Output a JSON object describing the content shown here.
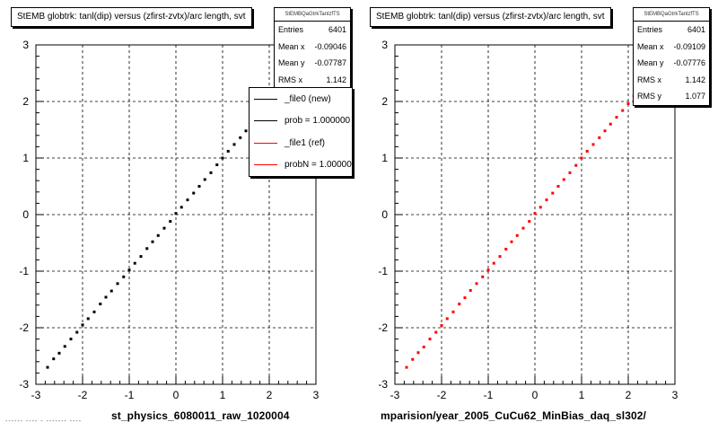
{
  "colors": {
    "new": "#000000",
    "ref": "#ff0000",
    "grid": "#000000"
  },
  "panels": [
    {
      "title": "StEMB globtrk: tanl(dip) versus (zfirst-zvtx)/arc length, svt",
      "stats": {
        "name": "StEMBQaGtrkTanlzfTS",
        "rows": [
          {
            "label": "Entries",
            "value": "6401"
          },
          {
            "label": "Mean x",
            "value": "-0.09046"
          },
          {
            "label": "Mean y",
            "value": "-0.07787"
          },
          {
            "label": "RMS x",
            "value": "1.142"
          }
        ]
      },
      "legend": [
        {
          "label": "_file0 (new)",
          "color": "#000000"
        },
        {
          "label": "prob = 1.000000",
          "color": "#000000"
        },
        {
          "label": "_file1 (ref)",
          "color": "#ff0000"
        },
        {
          "label": "probN = 1.000000",
          "color": "#ff0000"
        }
      ],
      "xtitle": "st_physics_6080011_raw_1020004"
    },
    {
      "title": "StEMB globtrk: tanl(dip) versus (zfirst-zvtx)/arc length, svt",
      "stats": {
        "name": "StEMBQaGtrkTanlzfTS",
        "rows": [
          {
            "label": "Entries",
            "value": "6401"
          },
          {
            "label": "Mean x",
            "value": "-0.09109"
          },
          {
            "label": "Mean y",
            "value": "-0.07776"
          },
          {
            "label": "RMS x",
            "value": "1.142"
          },
          {
            "label": "RMS y",
            "value": "1.077"
          }
        ]
      },
      "xtitle": "mparision/year_2005_CuCu62_MinBias_daq_sl302/"
    }
  ],
  "corner_note": "------ ---- - ------- ----",
  "chart_data": [
    {
      "type": "scatter",
      "title": "StEMB globtrk: tanl(dip) versus (zfirst-zvtx)/arc length, svt",
      "xlabel": "st_physics_6080011_raw_1020004",
      "ylabel": "",
      "xlim": [
        -3,
        3
      ],
      "ylim": [
        -3,
        3
      ],
      "grid": true,
      "xticks": [
        -3,
        -2,
        -1,
        0,
        1,
        2,
        3
      ],
      "yticks": [
        -3,
        -2,
        -1,
        0,
        1,
        2,
        3
      ],
      "series": [
        {
          "name": "_file0 (new)",
          "color": "#000000",
          "entries": 6401,
          "mean_x": -0.09046,
          "mean_y": -0.07787,
          "rms_x": 1.142,
          "x": [
            -2.75,
            -2.62,
            -2.5,
            -2.38,
            -2.25,
            -2.12,
            -2.0,
            -1.88,
            -1.75,
            -1.62,
            -1.5,
            -1.38,
            -1.25,
            -1.12,
            -1.0,
            -0.88,
            -0.75,
            -0.62,
            -0.5,
            -0.38,
            -0.25,
            -0.12,
            0.0,
            0.12,
            0.25,
            0.38,
            0.5,
            0.62,
            0.75,
            0.88,
            1.0,
            1.12,
            1.25,
            1.38,
            1.5,
            1.62,
            1.75,
            1.9
          ],
          "y": [
            -2.7,
            -2.55,
            -2.45,
            -2.33,
            -2.2,
            -2.08,
            -1.95,
            -1.84,
            -1.72,
            -1.58,
            -1.46,
            -1.35,
            -1.22,
            -1.1,
            -0.98,
            -0.86,
            -0.74,
            -0.6,
            -0.48,
            -0.37,
            -0.24,
            -0.12,
            0.02,
            0.13,
            0.26,
            0.38,
            0.5,
            0.62,
            0.74,
            0.88,
            1.0,
            1.12,
            1.24,
            1.36,
            1.48,
            1.6,
            1.72,
            1.86
          ]
        }
      ]
    },
    {
      "type": "scatter",
      "title": "StEMB globtrk: tanl(dip) versus (zfirst-zvtx)/arc length, svt",
      "xlabel": "mparision/year_2005_CuCu62_MinBias_daq_sl302/",
      "ylabel": "",
      "xlim": [
        -3,
        3
      ],
      "ylim": [
        -3,
        3
      ],
      "grid": true,
      "xticks": [
        -3,
        -2,
        -1,
        0,
        1,
        2,
        3
      ],
      "yticks": [
        -3,
        -2,
        -1,
        0,
        1,
        2,
        3
      ],
      "series": [
        {
          "name": "_file1 (ref)",
          "color": "#ff0000",
          "entries": 6401,
          "mean_x": -0.09109,
          "mean_y": -0.07776,
          "rms_x": 1.142,
          "rms_y": 1.077,
          "x": [
            -2.75,
            -2.62,
            -2.5,
            -2.38,
            -2.25,
            -2.12,
            -2.0,
            -1.88,
            -1.75,
            -1.62,
            -1.5,
            -1.38,
            -1.25,
            -1.12,
            -1.0,
            -0.88,
            -0.75,
            -0.62,
            -0.5,
            -0.38,
            -0.25,
            -0.12,
            0.0,
            0.12,
            0.25,
            0.38,
            0.5,
            0.62,
            0.75,
            0.88,
            1.0,
            1.12,
            1.25,
            1.38,
            1.5,
            1.62,
            1.75,
            1.88,
            2.0,
            2.12,
            2.25
          ],
          "y": [
            -2.7,
            -2.56,
            -2.44,
            -2.34,
            -2.2,
            -2.08,
            -1.96,
            -1.84,
            -1.72,
            -1.58,
            -1.47,
            -1.34,
            -1.22,
            -1.1,
            -0.98,
            -0.86,
            -0.74,
            -0.61,
            -0.48,
            -0.37,
            -0.24,
            -0.12,
            0.02,
            0.13,
            0.26,
            0.38,
            0.5,
            0.62,
            0.74,
            0.87,
            1.0,
            1.12,
            1.24,
            1.36,
            1.48,
            1.6,
            1.72,
            1.84,
            1.96,
            2.1,
            2.22
          ]
        }
      ]
    }
  ]
}
